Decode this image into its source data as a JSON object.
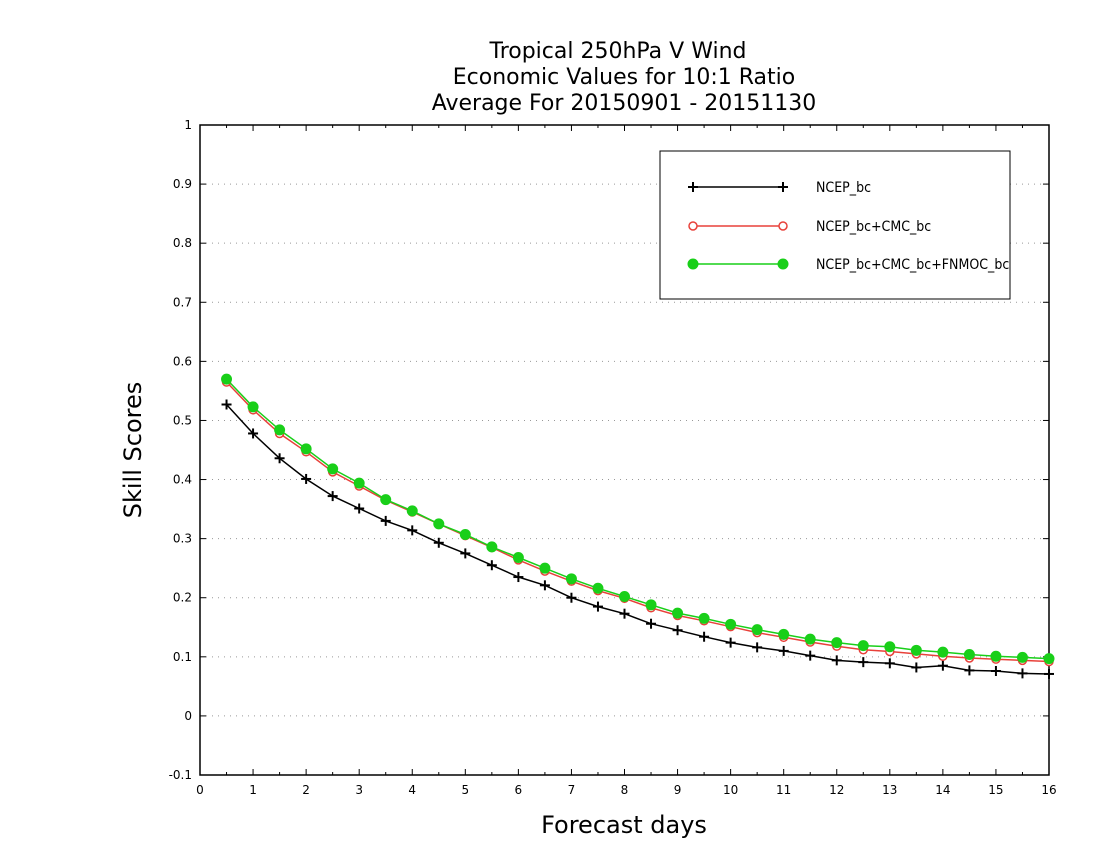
{
  "chart_data": {
    "type": "line",
    "title": [
      "Tropical 250hPa V Wind",
      "Economic Values for 10:1 Ratio",
      "Average For 20150901 - 20151130"
    ],
    "xlabel": "Forecast days",
    "ylabel": "Skill Scores",
    "xlim": [
      0,
      16
    ],
    "ylim": [
      -0.1,
      1
    ],
    "xticks": [
      "0",
      "1",
      "2",
      "3",
      "4",
      "5",
      "6",
      "7",
      "8",
      "9",
      "10",
      "11",
      "12",
      "13",
      "14",
      "15",
      "16"
    ],
    "yticks": [
      "-0.1",
      "0",
      "0.1",
      "0.2",
      "0.3",
      "0.4",
      "0.5",
      "0.6",
      "0.7",
      "0.8",
      "0.9",
      "1"
    ],
    "grid": "horizontal dotted",
    "legend_position": "top-right",
    "x": [
      0.5,
      1,
      1.5,
      2,
      2.5,
      3,
      3.5,
      4,
      4.5,
      5,
      5.5,
      6,
      6.5,
      7,
      7.5,
      8,
      8.5,
      9,
      9.5,
      10,
      10.5,
      11,
      11.5,
      12,
      12.5,
      13,
      13.5,
      14,
      14.5,
      15,
      15.5,
      16
    ],
    "series": [
      {
        "name": "NCEP_bc",
        "color": "#000000",
        "marker": "plus",
        "values": [
          0.527,
          0.478,
          0.436,
          0.401,
          0.372,
          0.351,
          0.33,
          0.314,
          0.293,
          0.275,
          0.255,
          0.235,
          0.221,
          0.2,
          0.185,
          0.173,
          0.156,
          0.145,
          0.134,
          0.124,
          0.116,
          0.11,
          0.102,
          0.094,
          0.091,
          0.089,
          0.082,
          0.085,
          0.077,
          0.076,
          0.072,
          0.071
        ]
      },
      {
        "name": "NCEP_bc+CMC_bc",
        "color": "#e8413a",
        "marker": "open-circle",
        "values": [
          0.565,
          0.518,
          0.478,
          0.447,
          0.413,
          0.389,
          0.365,
          0.345,
          0.325,
          0.305,
          0.285,
          0.264,
          0.245,
          0.228,
          0.212,
          0.199,
          0.183,
          0.17,
          0.161,
          0.151,
          0.141,
          0.133,
          0.125,
          0.118,
          0.112,
          0.109,
          0.105,
          0.101,
          0.098,
          0.096,
          0.094,
          0.092
        ]
      },
      {
        "name": "NCEP_bc+CMC_bc+FNMOC_bc",
        "color": "#19cf19",
        "marker": "filled-circle",
        "values": [
          0.57,
          0.523,
          0.484,
          0.452,
          0.418,
          0.394,
          0.366,
          0.347,
          0.325,
          0.307,
          0.286,
          0.268,
          0.25,
          0.232,
          0.216,
          0.202,
          0.188,
          0.174,
          0.165,
          0.155,
          0.146,
          0.138,
          0.13,
          0.124,
          0.119,
          0.117,
          0.111,
          0.108,
          0.104,
          0.101,
          0.099,
          0.097
        ]
      }
    ]
  }
}
